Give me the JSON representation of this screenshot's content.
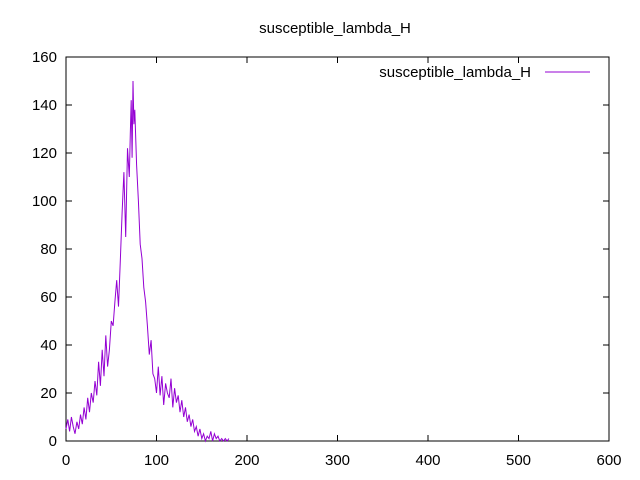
{
  "chart_data": {
    "type": "line",
    "title": "susceptible_lambda_H",
    "xlabel": "",
    "ylabel": "",
    "xlim": [
      0,
      600
    ],
    "ylim": [
      0,
      160
    ],
    "xticks": [
      0,
      100,
      200,
      300,
      400,
      500,
      600
    ],
    "yticks": [
      0,
      20,
      40,
      60,
      80,
      100,
      120,
      140,
      160
    ],
    "grid": false,
    "legend": "top-right",
    "series": [
      {
        "name": "susceptible_lambda_H",
        "color": "#9400d3",
        "x": [
          0,
          2,
          4,
          6,
          8,
          10,
          12,
          14,
          16,
          18,
          20,
          22,
          24,
          26,
          28,
          30,
          32,
          34,
          36,
          38,
          40,
          42,
          44,
          46,
          48,
          50,
          52,
          54,
          56,
          58,
          60,
          62,
          64,
          66,
          68,
          70,
          71,
          72,
          73,
          74,
          75,
          76,
          78,
          80,
          82,
          84,
          86,
          88,
          90,
          92,
          94,
          96,
          98,
          100,
          102,
          104,
          106,
          108,
          110,
          112,
          114,
          116,
          118,
          120,
          122,
          124,
          126,
          128,
          130,
          132,
          134,
          136,
          138,
          140,
          142,
          144,
          146,
          148,
          150,
          152,
          154,
          156,
          158,
          160,
          162,
          164,
          166,
          168,
          170,
          172,
          174,
          176,
          178,
          180
        ],
        "y": [
          5,
          9,
          4,
          10,
          6,
          3,
          8,
          5,
          11,
          7,
          14,
          9,
          18,
          12,
          20,
          16,
          25,
          19,
          33,
          23,
          38,
          27,
          44,
          31,
          38,
          50,
          48,
          58,
          67,
          56,
          75,
          95,
          112,
          85,
          122,
          110,
          128,
          142,
          118,
          150,
          132,
          138,
          115,
          100,
          82,
          76,
          64,
          58,
          48,
          36,
          42,
          28,
          26,
          20,
          31,
          19,
          27,
          15,
          24,
          20,
          18,
          26,
          14,
          22,
          16,
          19,
          12,
          17,
          10,
          14,
          8,
          11,
          6,
          9,
          4,
          6,
          2,
          5,
          1,
          3,
          0,
          2,
          1,
          4,
          0,
          3,
          1,
          2,
          0,
          1,
          0,
          1,
          0,
          1
        ]
      }
    ]
  }
}
